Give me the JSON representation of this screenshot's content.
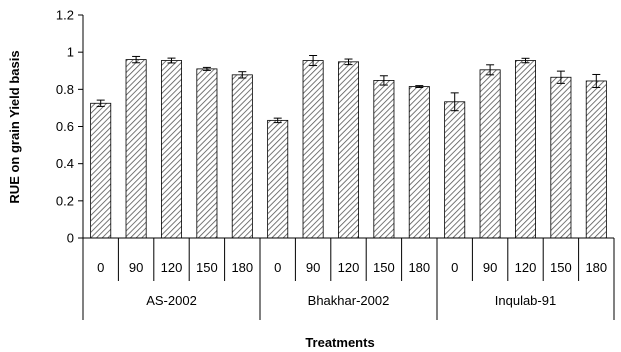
{
  "chart_data": {
    "type": "bar",
    "xlabel": "Treatments",
    "ylabel": "RUE on grain Yield basis",
    "ylim": [
      0,
      1.2
    ],
    "yticks": [
      0,
      0.2,
      0.4,
      0.6,
      0.8,
      1,
      1.2
    ],
    "ytick_labels": [
      "0",
      "0.2",
      "0.4",
      "0.6",
      "0.8",
      "1",
      "1.2"
    ],
    "legend": "none",
    "grid": false,
    "groups": [
      {
        "name": "AS-2002",
        "categories": [
          "0",
          "90",
          "120",
          "150",
          "180"
        ],
        "values": [
          0.725,
          0.96,
          0.955,
          0.91,
          0.878
        ],
        "errors": [
          0.017,
          0.017,
          0.013,
          0.008,
          0.017
        ]
      },
      {
        "name": "Bhakhar-2002",
        "categories": [
          "0",
          "90",
          "120",
          "150",
          "180"
        ],
        "values": [
          0.633,
          0.955,
          0.948,
          0.848,
          0.815
        ],
        "errors": [
          0.012,
          0.027,
          0.015,
          0.025,
          0.005
        ]
      },
      {
        "name": "Inqulab-91",
        "categories": [
          "0",
          "90",
          "120",
          "150",
          "180"
        ],
        "values": [
          0.733,
          0.905,
          0.955,
          0.865,
          0.845
        ],
        "errors": [
          0.048,
          0.027,
          0.012,
          0.033,
          0.035
        ]
      }
    ],
    "colors": {
      "bar_fill": "#ffffff",
      "hatch": "#555555",
      "bar_stroke": "#000000",
      "axis": "#000000"
    }
  }
}
